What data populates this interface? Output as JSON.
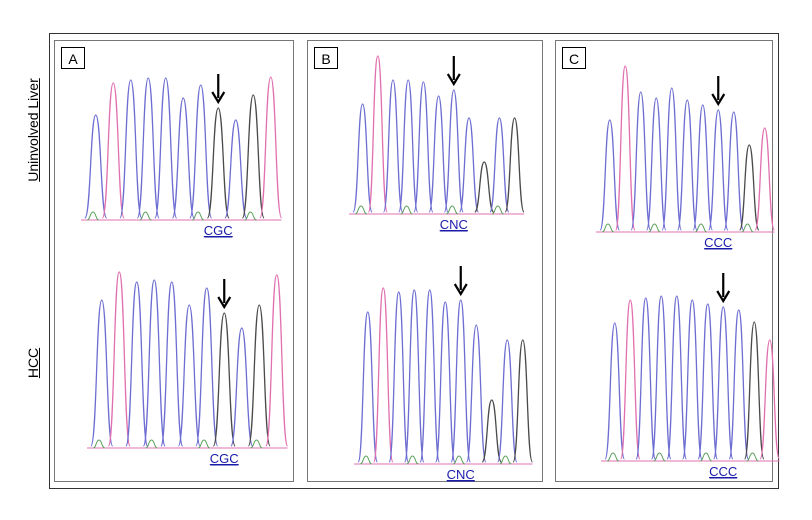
{
  "row_labels": {
    "top": "Uninvolved Liver",
    "bottom": "HCC"
  },
  "panels": [
    {
      "label": "A",
      "codons": [
        "CGC",
        "CGC"
      ]
    },
    {
      "label": "B",
      "codons": [
        "CNC",
        "CNC"
      ]
    },
    {
      "label": "C",
      "codons": [
        "CCC",
        "CCC"
      ]
    }
  ],
  "colors": {
    "trace_blue": "#6e6ed2",
    "trace_black": "#4a4a4a",
    "trace_pink": "#e070b0",
    "trace_green": "#5aa05a",
    "arrow": "#000000",
    "codon_text": "#1a1aaa"
  }
}
